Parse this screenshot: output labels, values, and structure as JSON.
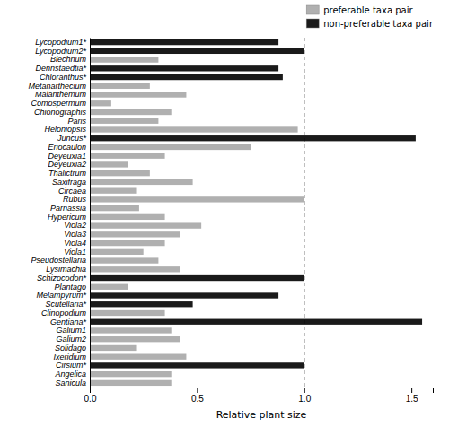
{
  "chart_data": {
    "type": "bar",
    "orientation": "horizontal",
    "xlabel": "Relative plant size",
    "categories": [
      "Lycopodium1*",
      "Lycopodium2*",
      "Blechnum",
      "Dennstaedtia*",
      "Chloranthus*",
      "Metanarthecium",
      "Maianthemum",
      "Comospermum",
      "Chionographis",
      "Paris",
      "Heloniopsis",
      "Juncus*",
      "Eriocaulon",
      "Deyeuxia1",
      "Deyeuxia2",
      "Thalictrum",
      "Saxifraga",
      "Circaea",
      "Rubus",
      "Parnassia",
      "Hypericum",
      "Viola2",
      "Viola3",
      "Viola4",
      "Viola1",
      "Pseudostellaria",
      "Lysimachia",
      "Schizocodon*",
      "Plantago",
      "Melampyrum*",
      "Scutellaria*",
      "Clinopodium",
      "Gentiana*",
      "Galium1",
      "Galium2",
      "Solidago",
      "Ixeridium",
      "Cirsium*",
      "Angelica",
      "Sanicula"
    ],
    "series": [
      {
        "name": "preferable taxa pair",
        "color": "#b0b0b0",
        "values": [
          null,
          null,
          0.32,
          null,
          null,
          0.28,
          0.45,
          0.1,
          0.38,
          0.32,
          0.97,
          null,
          0.75,
          0.35,
          0.18,
          0.28,
          0.48,
          0.22,
          1.0,
          0.23,
          0.35,
          0.52,
          0.42,
          0.35,
          0.25,
          0.32,
          0.42,
          null,
          0.18,
          null,
          null,
          0.35,
          null,
          0.38,
          0.42,
          0.22,
          0.45,
          null,
          0.38,
          0.38
        ]
      },
      {
        "name": "non-preferable taxa pair",
        "color": "#1a1a1a",
        "values": [
          0.88,
          1.0,
          null,
          0.88,
          0.9,
          null,
          null,
          null,
          null,
          null,
          null,
          1.52,
          null,
          null,
          null,
          null,
          null,
          null,
          null,
          null,
          null,
          null,
          null,
          null,
          null,
          null,
          null,
          1.0,
          null,
          0.88,
          0.48,
          null,
          1.55,
          null,
          null,
          null,
          null,
          1.0,
          null,
          null
        ]
      }
    ],
    "xlim": [
      0.0,
      1.6
    ],
    "xticks": [
      {
        "value": 0.0,
        "label": "0.0"
      },
      0.5,
      {
        "value": 1.0,
        "label": "1.0"
      },
      1.5
    ],
    "reference_line": 1.0,
    "legend": "upper right",
    "grid": false
  }
}
